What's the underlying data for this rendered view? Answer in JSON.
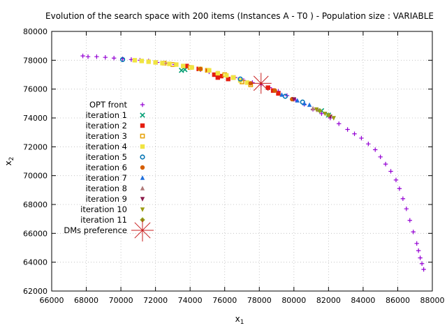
{
  "chart_data": {
    "type": "scatter",
    "title": "Evolution of the search space with 200 items (Instances A - T0 ) - Population size : VARIABLE",
    "xlabel": "x",
    "xlabel_sub": "1",
    "ylabel": "x",
    "ylabel_sub": "2",
    "xlim": [
      66000,
      88000
    ],
    "ylim": [
      62000,
      80000
    ],
    "xticks": [
      "66000",
      "68000",
      "70000",
      "72000",
      "74000",
      "76000",
      "78000",
      "80000",
      "82000",
      "84000",
      "86000",
      "88000"
    ],
    "yticks": [
      "62000",
      "64000",
      "66000",
      "68000",
      "70000",
      "72000",
      "74000",
      "76000",
      "78000",
      "80000"
    ],
    "grid": true,
    "legend_position": "left-middle",
    "series": [
      {
        "name": "OPT front",
        "color": "#9400d3",
        "marker": "plus",
        "x": [
          67800,
          68100,
          68600,
          69100,
          69600,
          70100,
          70600,
          71100,
          71600,
          72100,
          72600,
          73100,
          73600,
          74100,
          74600,
          75100,
          75600,
          76100,
          76600,
          77100,
          77600,
          78100,
          78600,
          79100,
          79600,
          80100,
          80600,
          81100,
          81600,
          82100,
          82600,
          83100,
          83500,
          83900,
          84300,
          84700,
          85000,
          85300,
          85600,
          85900,
          86100,
          86300,
          86500,
          86700,
          86900,
          87100,
          87200,
          87300,
          87400,
          87500
        ],
        "y": [
          78300,
          78250,
          78250,
          78200,
          78150,
          78100,
          78050,
          78000,
          77950,
          77850,
          77800,
          77700,
          77600,
          77500,
          77350,
          77200,
          77100,
          76950,
          76800,
          76600,
          76450,
          76300,
          76100,
          75850,
          75550,
          75250,
          74950,
          74600,
          74300,
          74000,
          73600,
          73200,
          72900,
          72600,
          72200,
          71800,
          71300,
          70800,
          70300,
          69700,
          69100,
          68400,
          67700,
          66900,
          66100,
          65300,
          64800,
          64300,
          63900,
          63500
        ]
      },
      {
        "name": "iteration 1",
        "color": "#009e73",
        "marker": "x",
        "x": [
          73500,
          73700,
          81600,
          82000
        ],
        "y": [
          77300,
          77350,
          74500,
          74200
        ]
      },
      {
        "name": "iteration 2",
        "color": "#e51e10",
        "marker": "square",
        "x": [
          73800,
          74500,
          75000,
          75400,
          75600,
          75800,
          76200,
          78500,
          78800,
          79100
        ],
        "y": [
          77600,
          77400,
          77300,
          77000,
          76800,
          76900,
          76700,
          76100,
          75900,
          75700
        ]
      },
      {
        "name": "iteration 3",
        "color": "#e69f00",
        "marker": "square-open",
        "x": [
          72500,
          73000,
          74000,
          75000,
          76000,
          76500,
          77000,
          77500
        ],
        "y": [
          77800,
          77700,
          77500,
          77300,
          77000,
          76800,
          76500,
          76300
        ]
      },
      {
        "name": "iteration 4",
        "color": "#f0e442",
        "marker": "square",
        "x": [
          70800,
          71200,
          71600,
          72000,
          72400,
          72800,
          73200,
          73600,
          74100,
          74600,
          75100,
          75600,
          76100,
          76500,
          76900,
          77300
        ],
        "y": [
          78000,
          77950,
          77900,
          77850,
          77800,
          77750,
          77700,
          77600,
          77500,
          77400,
          77300,
          77100,
          76950,
          76800,
          76600,
          76450
        ]
      },
      {
        "name": "iteration 5",
        "color": "#0072b2",
        "marker": "circle-open",
        "x": [
          70100,
          76900,
          79500,
          80500
        ],
        "y": [
          78050,
          76700,
          75500,
          75100
        ]
      },
      {
        "name": "iteration 6",
        "color": "#d55e00",
        "marker": "circle",
        "x": [
          74600,
          77500,
          78900,
          79900
        ],
        "y": [
          77400,
          76400,
          75900,
          75300
        ]
      },
      {
        "name": "iteration 7",
        "color": "#1f6fdb",
        "marker": "triangle",
        "x": [
          79300,
          80200,
          80600,
          80900
        ],
        "y": [
          75600,
          75200,
          75000,
          74900
        ]
      },
      {
        "name": "iteration 8",
        "color": "#b07a7a",
        "marker": "triangle",
        "x": [
          81100,
          81400
        ],
        "y": [
          74650,
          74550
        ]
      },
      {
        "name": "iteration 9",
        "color": "#8b1a4a",
        "marker": "triangle-down",
        "x": [
          80000,
          82100
        ],
        "y": [
          75300,
          74100
        ]
      },
      {
        "name": "iteration 10",
        "color": "#9b9b10",
        "marker": "triangle-down",
        "x": [
          81300,
          81800,
          82300
        ],
        "y": [
          74600,
          74300,
          74000
        ]
      },
      {
        "name": "iteration 11",
        "color": "#8fa31a",
        "marker": "diamond",
        "x": [
          81500,
          82000
        ],
        "y": [
          74500,
          74200
        ]
      },
      {
        "name": "DMs preference",
        "color": "#c81e1e",
        "marker": "star",
        "x": [
          78100
        ],
        "y": [
          76400
        ]
      }
    ]
  }
}
